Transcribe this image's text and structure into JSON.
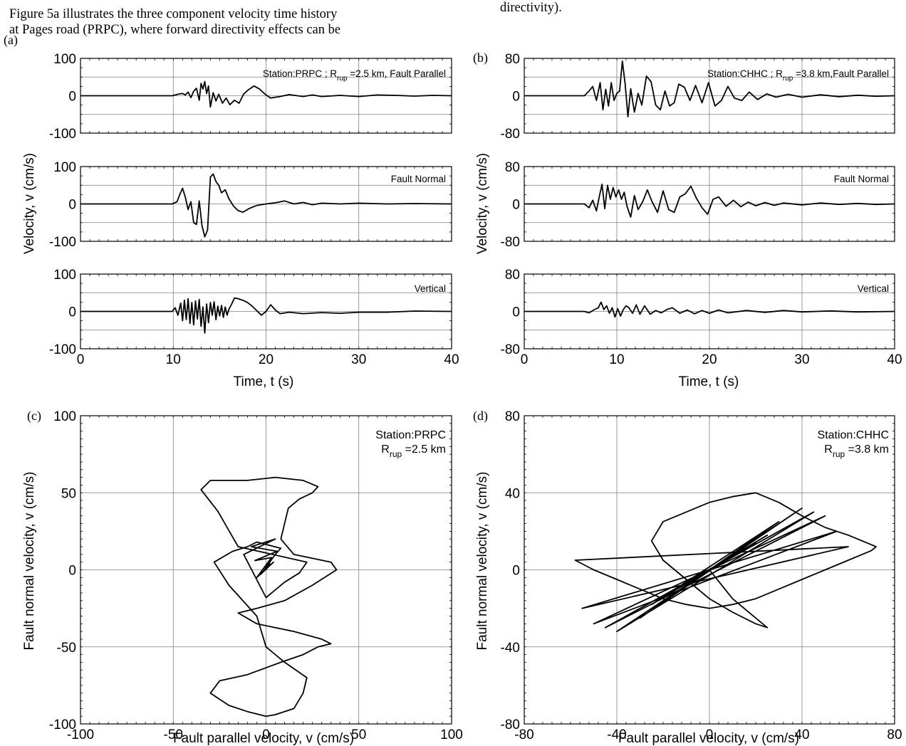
{
  "text": {
    "left_line1": "Figure 5a illustrates the three component velocity time history",
    "left_line2": "at Pages road (PRPC), where forward directivity effects can be",
    "right_line1": "directivity)."
  },
  "panel_letters": [
    "(a)",
    "(b)",
    "(c)",
    "(d)"
  ],
  "labels": {
    "time_xlabel": "Time, t (s)",
    "velocity_ylabel": "Velocity, v (cm/s)",
    "fp_xlabel": "Fault parallel velocity, v (cm/s)",
    "fn_ylabel": "Fault normal velocity, v (cm/s)"
  },
  "annotations": {
    "a_top_prefix": "Station:PRPC ; R",
    "a_top_sub": "rup",
    "a_top_suffix": " =2.5 km, Fault Parallel",
    "b_top_prefix": "Station:CHHC ; R",
    "b_top_sub": "rup",
    "b_top_suffix": " =3.8 km,Fault Parallel",
    "fault_normal": "Fault Normal",
    "vertical": "Vertical",
    "c_line1": "Station:PRPC",
    "c_line2_prefix": "R",
    "c_line2_sub": "rup",
    "c_line2_suffix": " =2.5 km",
    "d_line1": "Station:CHHC",
    "d_line2_prefix": "R",
    "d_line2_sub": "rup",
    "d_line2_suffix": " =3.8 km"
  },
  "chart_data": [
    {
      "id": "a1",
      "type": "line",
      "station": "PRPC",
      "component": "Fault Parallel",
      "xlim": [
        0,
        40
      ],
      "ylim": [
        -100,
        100
      ],
      "x_ticks": [
        0,
        10,
        20,
        30,
        40
      ],
      "y_ticks": [
        -100,
        0,
        100
      ],
      "grid": true,
      "series": [
        {
          "x": [
            0,
            9.9,
            10.5,
            11,
            11.3,
            11.6,
            11.9,
            12.2,
            12.5,
            12.8,
            13.0,
            13.2,
            13.4,
            13.6,
            13.8,
            14.0,
            14.3,
            14.6,
            14.9,
            15.3,
            15.7,
            16.1,
            16.6,
            17.1,
            17.6,
            18.1,
            18.7,
            19.3,
            19.9,
            20.5,
            21.5,
            22.5,
            24,
            25,
            26,
            28,
            30,
            32,
            34,
            36,
            38,
            40
          ],
          "y": [
            0,
            0,
            4,
            6,
            2,
            10,
            -5,
            12,
            20,
            -12,
            33,
            18,
            38,
            6,
            26,
            -30,
            8,
            -14,
            4,
            -20,
            -6,
            -24,
            -12,
            -20,
            5,
            16,
            26,
            18,
            4,
            -6,
            -2,
            3,
            -2,
            2,
            -2,
            1,
            -2,
            2,
            1,
            -1,
            1,
            0
          ]
        }
      ]
    },
    {
      "id": "a2",
      "type": "line",
      "station": "PRPC",
      "component": "Fault Normal",
      "xlim": [
        0,
        40
      ],
      "ylim": [
        -100,
        100
      ],
      "x_ticks": [
        0,
        10,
        20,
        30,
        40
      ],
      "y_ticks": [
        -100,
        0,
        100
      ],
      "grid": true,
      "series": [
        {
          "x": [
            0,
            9.9,
            10.4,
            10.7,
            11.0,
            11.3,
            11.6,
            11.9,
            12.2,
            12.5,
            12.8,
            13.1,
            13.4,
            13.7,
            14.0,
            14.3,
            14.6,
            14.9,
            15.2,
            15.6,
            16.0,
            16.5,
            17.0,
            17.5,
            18.2,
            19,
            20,
            21,
            22,
            23,
            24,
            25,
            26,
            28,
            30,
            33,
            36,
            40
          ],
          "y": [
            0,
            0,
            6,
            25,
            42,
            18,
            -15,
            6,
            -50,
            -55,
            8,
            -58,
            -88,
            -70,
            72,
            80,
            60,
            50,
            30,
            38,
            14,
            -6,
            -18,
            -22,
            -12,
            -4,
            0,
            3,
            8,
            0,
            4,
            -2,
            2,
            0,
            2,
            0,
            1,
            0
          ]
        }
      ]
    },
    {
      "id": "a3",
      "type": "line",
      "station": "PRPC",
      "component": "Vertical",
      "xlim": [
        0,
        40
      ],
      "ylim": [
        -100,
        100
      ],
      "x_ticks": [
        0,
        10,
        20,
        30,
        40
      ],
      "y_ticks": [
        -100,
        0,
        100
      ],
      "grid": true,
      "series": [
        {
          "x": [
            0,
            9.9,
            10.2,
            10.5,
            10.8,
            11.0,
            11.2,
            11.4,
            11.6,
            11.8,
            12.0,
            12.2,
            12.4,
            12.6,
            12.8,
            13.0,
            13.2,
            13.4,
            13.6,
            13.8,
            14.0,
            14.2,
            14.4,
            14.6,
            14.8,
            15.0,
            15.2,
            15.4,
            15.6,
            15.8,
            16.0,
            16.3,
            16.6,
            17.0,
            17.5,
            18.0,
            18.5,
            19.0,
            19.5,
            20.0,
            20.5,
            21.0,
            21.5,
            22.5,
            24,
            26,
            28,
            30,
            33,
            36,
            40
          ],
          "y": [
            0,
            0,
            10,
            -10,
            22,
            -25,
            30,
            -22,
            34,
            -32,
            24,
            -36,
            28,
            -20,
            32,
            -40,
            12,
            -58,
            20,
            -30,
            24,
            -10,
            26,
            -22,
            14,
            -12,
            16,
            -16,
            12,
            -10,
            6,
            20,
            36,
            34,
            30,
            24,
            14,
            2,
            -10,
            0,
            18,
            4,
            -6,
            -2,
            -6,
            -3,
            -5,
            -2,
            -2,
            1,
            0
          ]
        }
      ]
    },
    {
      "id": "b1",
      "type": "line",
      "station": "CHHC",
      "component": "Fault Parallel",
      "xlim": [
        0,
        40
      ],
      "ylim": [
        -80,
        80
      ],
      "x_ticks": [
        0,
        10,
        20,
        30,
        40
      ],
      "y_ticks": [
        -80,
        0,
        80
      ],
      "grid": true,
      "series": [
        {
          "x": [
            0,
            6.5,
            7.0,
            7.4,
            7.8,
            8.2,
            8.5,
            8.8,
            9.1,
            9.4,
            9.7,
            10.0,
            10.3,
            10.6,
            10.9,
            11.2,
            11.5,
            11.9,
            12.3,
            12.7,
            13.2,
            13.7,
            14.2,
            14.7,
            15.2,
            15.7,
            16.2,
            16.7,
            17.3,
            17.9,
            18.5,
            19.2,
            19.9,
            20.6,
            21.3,
            22.0,
            22.7,
            23.5,
            24.3,
            25.2,
            26.2,
            27.2,
            28.5,
            30,
            32,
            34,
            36,
            38,
            40
          ],
          "y": [
            0,
            0,
            10,
            20,
            -10,
            28,
            -30,
            14,
            -22,
            28,
            -10,
            5,
            10,
            74,
            25,
            -45,
            15,
            -35,
            5,
            -20,
            42,
            30,
            -20,
            -30,
            10,
            -22,
            -15,
            25,
            18,
            -10,
            22,
            -15,
            28,
            -22,
            -10,
            20,
            -5,
            -10,
            8,
            -8,
            4,
            -3,
            3,
            -3,
            2,
            -2,
            1,
            -1,
            0
          ]
        }
      ]
    },
    {
      "id": "b2",
      "type": "line",
      "station": "CHHC",
      "component": "Fault Normal",
      "xlim": [
        0,
        40
      ],
      "ylim": [
        -80,
        80
      ],
      "x_ticks": [
        0,
        10,
        20,
        30,
        40
      ],
      "y_ticks": [
        -80,
        0,
        80
      ],
      "grid": true,
      "series": [
        {
          "x": [
            0,
            6.5,
            7.0,
            7.4,
            7.8,
            8.1,
            8.4,
            8.7,
            9.0,
            9.3,
            9.6,
            9.9,
            10.2,
            10.5,
            10.8,
            11.1,
            11.5,
            11.9,
            12.3,
            12.8,
            13.3,
            13.8,
            14.4,
            15.0,
            15.6,
            16.2,
            16.8,
            17.4,
            18.0,
            18.6,
            19.2,
            19.8,
            20.4,
            21.0,
            21.8,
            22.6,
            23.4,
            24.2,
            25,
            26,
            27,
            28,
            30,
            32,
            34,
            36,
            38,
            40
          ],
          "y": [
            0,
            0,
            -8,
            8,
            -15,
            15,
            42,
            -10,
            40,
            10,
            35,
            15,
            30,
            10,
            25,
            -5,
            -28,
            18,
            -12,
            5,
            30,
            5,
            -18,
            28,
            -12,
            -18,
            15,
            22,
            38,
            12,
            -8,
            -22,
            10,
            15,
            -5,
            8,
            -6,
            4,
            -4,
            3,
            -3,
            2,
            -2,
            2,
            -1,
            1,
            -1,
            0
          ]
        }
      ]
    },
    {
      "id": "b3",
      "type": "line",
      "station": "CHHC",
      "component": "Vertical",
      "xlim": [
        0,
        40
      ],
      "ylim": [
        -80,
        80
      ],
      "x_ticks": [
        0,
        10,
        20,
        30,
        40
      ],
      "y_ticks": [
        -80,
        0,
        80
      ],
      "grid": true,
      "series": [
        {
          "x": [
            0,
            6.5,
            7.0,
            7.5,
            8.0,
            8.3,
            8.6,
            8.9,
            9.2,
            9.5,
            9.8,
            10.1,
            10.4,
            10.7,
            11.0,
            11.3,
            11.7,
            12.1,
            12.5,
            13.0,
            13.6,
            14.2,
            14.8,
            15.4,
            16.0,
            16.8,
            17.6,
            18.4,
            19.2,
            20,
            21,
            22,
            24,
            26,
            28,
            30,
            33,
            36,
            40
          ],
          "y": [
            0,
            0,
            -3,
            3,
            8,
            20,
            4,
            12,
            -4,
            8,
            -12,
            6,
            -10,
            4,
            12,
            8,
            -4,
            14,
            -6,
            12,
            -6,
            2,
            -3,
            4,
            8,
            -4,
            3,
            -5,
            2,
            -4,
            3,
            -3,
            2,
            -2,
            2,
            -1,
            1,
            -1,
            0
          ]
        }
      ]
    },
    {
      "id": "c",
      "type": "line",
      "station": "PRPC",
      "xlabel": "Fault parallel velocity, v (cm/s)",
      "ylabel": "Fault normal velocity, v (cm/s)",
      "xlim": [
        -100,
        100
      ],
      "ylim": [
        -100,
        100
      ],
      "x_ticks": [
        -100,
        -50,
        0,
        50,
        100
      ],
      "y_ticks": [
        -100,
        -50,
        0,
        50,
        100
      ],
      "grid": true,
      "series": [
        {
          "x": [
            0,
            1,
            -2,
            2,
            -3,
            4,
            -5,
            3,
            -6,
            6,
            -8,
            5,
            -12,
            0,
            10,
            18,
            22,
            -15,
            -26,
            -35,
            -30,
            -10,
            5,
            20,
            28,
            25,
            18,
            12,
            8,
            15,
            35,
            38,
            25,
            10,
            -5,
            -15,
            -5,
            15,
            30,
            35,
            28,
            20,
            8,
            -10,
            -25,
            -30,
            -20,
            -10,
            0,
            5,
            15,
            20,
            22,
            10,
            0,
            -5,
            -20,
            -28,
            -18,
            -10,
            -5,
            8,
            5,
            2,
            -2
          ],
          "y": [
            0,
            2,
            -2,
            4,
            -3,
            5,
            -5,
            8,
            6,
            12,
            15,
            20,
            10,
            -18,
            -8,
            -2,
            5,
            15,
            38,
            52,
            58,
            58,
            60,
            58,
            54,
            50,
            46,
            40,
            20,
            10,
            5,
            0,
            -10,
            -20,
            -25,
            -28,
            -35,
            -40,
            -45,
            -48,
            -50,
            -55,
            -60,
            -68,
            -72,
            -80,
            -88,
            -92,
            -95,
            -94,
            -90,
            -80,
            -70,
            -60,
            -50,
            -30,
            -10,
            5,
            12,
            15,
            18,
            14,
            10,
            5,
            0
          ]
        }
      ]
    },
    {
      "id": "d",
      "type": "line",
      "station": "CHHC",
      "xlabel": "Fault parallel velocity, v (cm/s)",
      "ylabel": "Fault normal velocity, v (cm/s)",
      "xlim": [
        -80,
        80
      ],
      "ylim": [
        -80,
        80
      ],
      "x_ticks": [
        -80,
        -40,
        0,
        40,
        80
      ],
      "y_ticks": [
        -80,
        -40,
        0,
        40,
        80
      ],
      "grid": true,
      "series": [
        {
          "x": [
            0,
            3,
            -3,
            5,
            -5,
            8,
            -8,
            12,
            -12,
            15,
            -15,
            20,
            -20,
            25,
            -25,
            30,
            -30,
            35,
            -35,
            40,
            -40,
            45,
            -45,
            50,
            -50,
            55,
            -55,
            60,
            -58,
            -50,
            -40,
            -30,
            -20,
            -10,
            0,
            10,
            20,
            30,
            40,
            50,
            60,
            70,
            72,
            68,
            60,
            50,
            40,
            30,
            20,
            10,
            0,
            -10,
            -20,
            -25,
            -20,
            -10,
            0,
            10,
            20,
            25,
            20,
            10,
            0
          ],
          "y": [
            0,
            2,
            -2,
            3,
            -3,
            5,
            -5,
            8,
            -8,
            10,
            -10,
            14,
            -14,
            18,
            -18,
            25,
            -25,
            28,
            -28,
            32,
            -32,
            30,
            -30,
            28,
            -28,
            20,
            -20,
            12,
            5,
            0,
            -5,
            -10,
            -15,
            -18,
            -20,
            -18,
            -15,
            -10,
            -5,
            0,
            5,
            10,
            12,
            14,
            18,
            22,
            28,
            35,
            40,
            38,
            35,
            30,
            25,
            15,
            5,
            -5,
            -15,
            -22,
            -28,
            -30,
            -25,
            -15,
            0
          ]
        }
      ]
    }
  ]
}
